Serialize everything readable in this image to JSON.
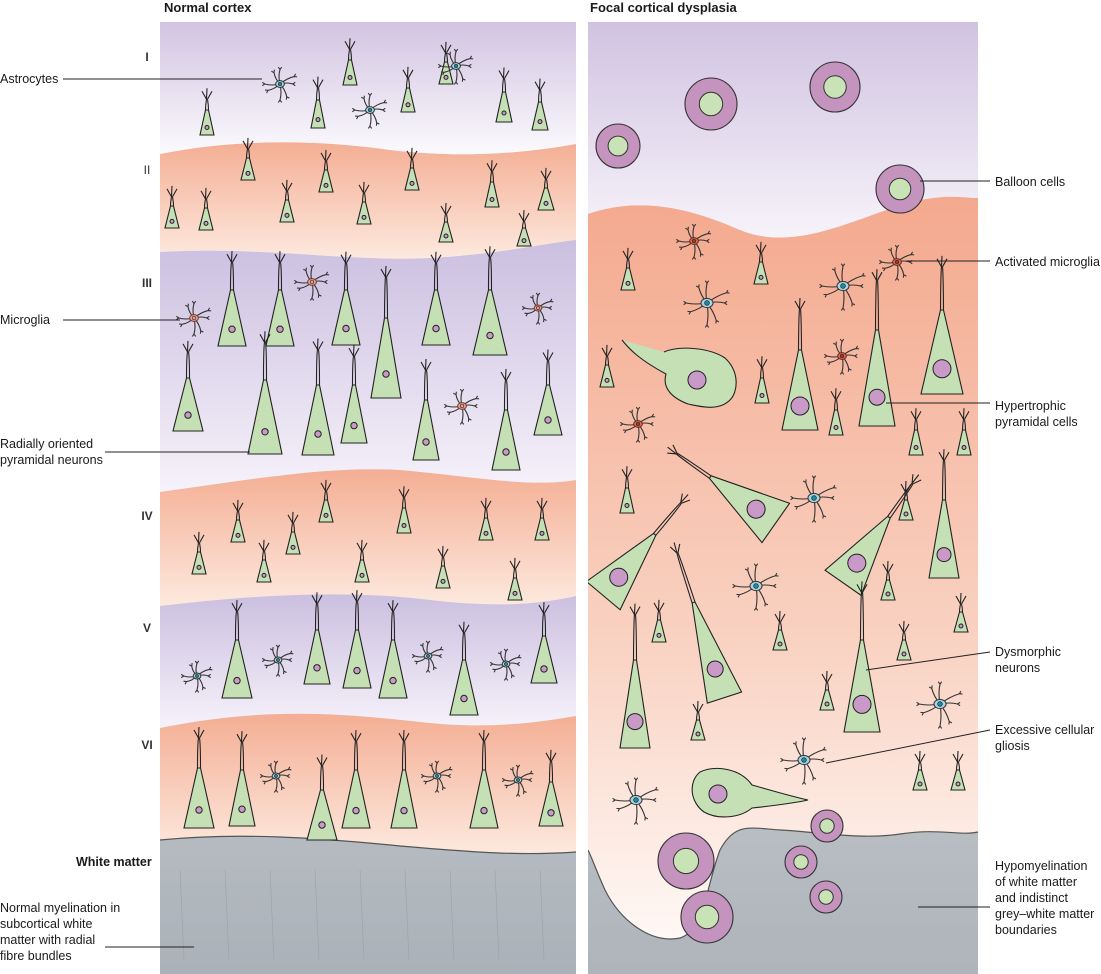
{
  "panels": {
    "normal": {
      "title": "Normal cortex"
    },
    "fcd": {
      "title": "Focal cortical dysplasia"
    }
  },
  "layers": [
    "I",
    "II",
    "III",
    "IV",
    "V",
    "VI"
  ],
  "white_matter_label": "White matter",
  "left_labels": {
    "astrocytes": "Astrocytes",
    "microglia": "Microglia",
    "pyramidal": [
      "Radially oriented",
      "pyramidal neurons"
    ],
    "myelination": [
      "Normal myelination in",
      "subcortical white",
      "matter with radial",
      "fibre bundles"
    ]
  },
  "right_labels": {
    "balloon": "Balloon cells",
    "activated_microglia": "Activated microglia",
    "hypertrophic": [
      "Hypertrophic",
      "pyramidal cells"
    ],
    "dysmorphic": [
      "Dysmorphic",
      "neurons"
    ],
    "gliosis": [
      "Excessive cellular",
      "gliosis"
    ],
    "hypomyelination": [
      "Hypomyelination",
      "of white matter",
      "and indistinct",
      "grey–white matter",
      "boundaries"
    ]
  },
  "colors": {
    "purple_band": "#d4c7e2",
    "salmon_band": "#f5b79e",
    "white_matter": "#b4bac0",
    "neuron_fill": "#c5e0b4",
    "nucleus_fill": "#c99ac7",
    "astrocyte_body": "#a9d3e3",
    "astrocyte_nucleus": "#1a8a9e",
    "microglia_body": "#e8a090",
    "activated_microglia_body": "#d96a52",
    "balloon_outer": "#c493be",
    "balloon_inner": "#c9e2b6"
  }
}
